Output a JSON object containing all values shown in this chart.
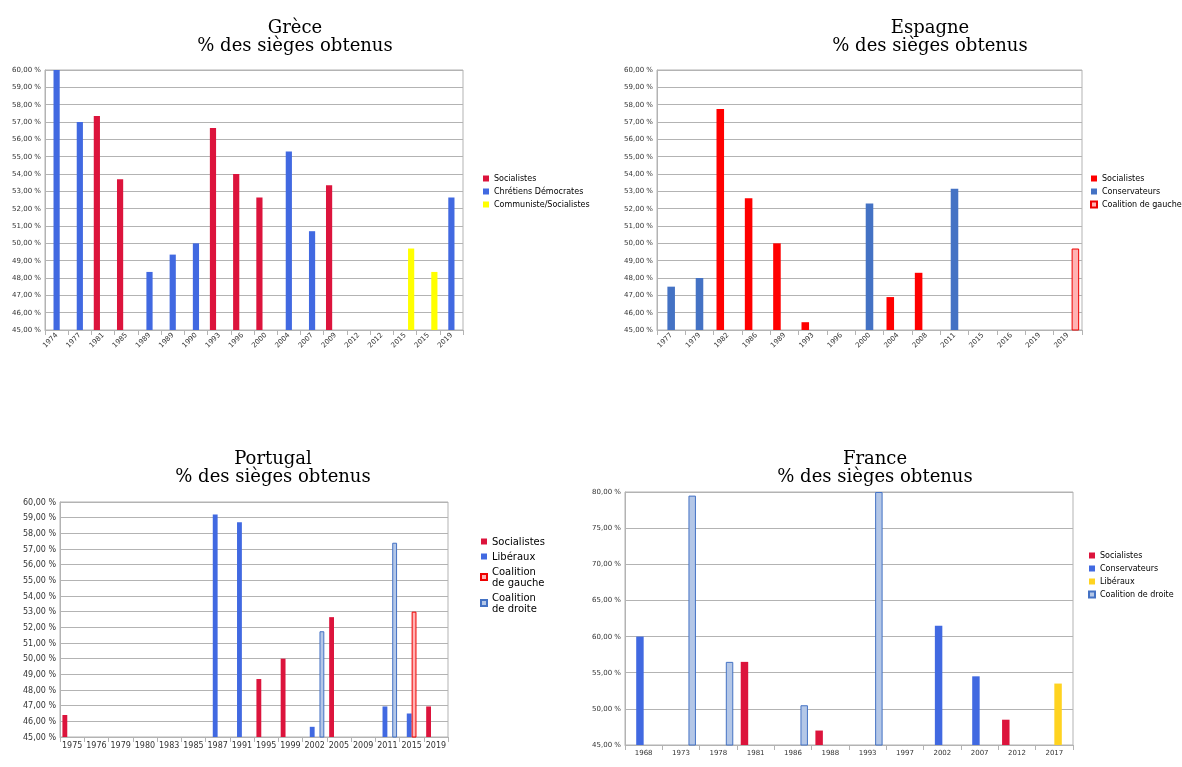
{
  "chart_data": [
    {
      "type": "bar",
      "title": "Grèce",
      "subtitle": "% des sièges obtenus",
      "categories": [
        "1974",
        "1977",
        "1981",
        "1985",
        "1989",
        "1989",
        "1990",
        "1993",
        "1996",
        "2000",
        "2004",
        "2007",
        "2009",
        "2012",
        "2012",
        "2015",
        "2015",
        "2019"
      ],
      "series": [
        {
          "name": "Socialistes",
          "color": "#dc143c",
          "values": [
            null,
            null,
            57.35,
            53.7,
            null,
            null,
            null,
            56.65,
            54.0,
            52.65,
            null,
            null,
            53.35,
            null,
            null,
            null,
            null,
            null
          ]
        },
        {
          "name": "Chrétiens Démocrates",
          "color": "#4169e1",
          "values": [
            60.0,
            57.0,
            null,
            null,
            48.35,
            49.35,
            50.0,
            null,
            null,
            null,
            55.3,
            50.7,
            null,
            null,
            null,
            null,
            null,
            52.65
          ]
        },
        {
          "name": "Communiste/Socialistes",
          "color": "#ffff00",
          "values": [
            null,
            null,
            null,
            null,
            null,
            null,
            null,
            null,
            null,
            null,
            null,
            null,
            null,
            null,
            null,
            49.7,
            48.35,
            null
          ]
        }
      ],
      "ylim": [
        45,
        60
      ],
      "yticks": [
        {
          "value": 45,
          "label": "45,00 %"
        },
        {
          "value": 46,
          "label": "46,00 %"
        },
        {
          "value": 47,
          "label": "47,00 %"
        },
        {
          "value": 48,
          "label": "48,00 %"
        },
        {
          "value": 49,
          "label": "49,00 %"
        },
        {
          "value": 50,
          "label": "50,00 %"
        },
        {
          "value": 51,
          "label": "51,00 %"
        },
        {
          "value": 52,
          "label": "52,00 %"
        },
        {
          "value": 53,
          "label": "53,00 %"
        },
        {
          "value": 54,
          "label": "54,00 %"
        },
        {
          "value": 55,
          "label": "55,00 %"
        },
        {
          "value": 56,
          "label": "56,00 %"
        },
        {
          "value": 57,
          "label": "57,00 %"
        },
        {
          "value": 58,
          "label": "58,00 %"
        },
        {
          "value": 59,
          "label": "59,00 %"
        },
        {
          "value": 60,
          "label": "60,00 %"
        }
      ],
      "grid": "y",
      "legend": "right"
    },
    {
      "type": "bar",
      "title": "Espagne",
      "subtitle": "% des sièges obtenus",
      "categories": [
        "1977",
        "1979",
        "1982",
        "1986",
        "1989",
        "1993",
        "1996",
        "2000",
        "2004",
        "2008",
        "2011",
        "2015",
        "2016",
        "2019",
        "2019"
      ],
      "series": [
        {
          "name": "Socialistes",
          "color": "#ff0000",
          "values": [
            null,
            null,
            57.75,
            52.6,
            50.0,
            45.45,
            null,
            null,
            46.9,
            48.3,
            null,
            null,
            null,
            null,
            null
          ]
        },
        {
          "name": "Conservateurs",
          "color": "#4472c4",
          "values": [
            47.5,
            48.0,
            null,
            null,
            null,
            null,
            null,
            52.3,
            null,
            null,
            53.15,
            null,
            null,
            null,
            null
          ]
        },
        {
          "name": "Coalition de gauche",
          "color": "#ffb3b3",
          "values": [
            null,
            null,
            null,
            null,
            null,
            null,
            null,
            null,
            null,
            null,
            null,
            null,
            null,
            null,
            49.7
          ]
        }
      ],
      "ylim": [
        45,
        60
      ],
      "yticks": [
        {
          "value": 45,
          "label": "45,00 %"
        },
        {
          "value": 46,
          "label": "46,00 %"
        },
        {
          "value": 47,
          "label": "47,00 %"
        },
        {
          "value": 48,
          "label": "48,00 %"
        },
        {
          "value": 49,
          "label": "49,00 %"
        },
        {
          "value": 50,
          "label": "50,00 %"
        },
        {
          "value": 51,
          "label": "51,00 %"
        },
        {
          "value": 52,
          "label": "52,00 %"
        },
        {
          "value": 53,
          "label": "53,00 %"
        },
        {
          "value": 54,
          "label": "54,00 %"
        },
        {
          "value": 55,
          "label": "55,00 %"
        },
        {
          "value": 56,
          "label": "56,00 %"
        },
        {
          "value": 57,
          "label": "57,00 %"
        },
        {
          "value": 58,
          "label": "58,00 %"
        },
        {
          "value": 59,
          "label": "59,00 %"
        },
        {
          "value": 60,
          "label": "60,00 %"
        }
      ],
      "grid": "y",
      "legend": "right"
    },
    {
      "type": "bar",
      "title": "Portugal",
      "subtitle": "% des sièges obtenus",
      "categories": [
        "1975",
        "1976",
        "1979",
        "1980",
        "1983",
        "1985",
        "1987",
        "1991",
        "1995",
        "1999",
        "2002",
        "2005",
        "2009",
        "2011",
        "2015",
        "2019"
      ],
      "series": [
        {
          "name": "Socialistes",
          "color": "#dc143c",
          "values": [
            46.4,
            null,
            null,
            null,
            null,
            null,
            null,
            null,
            48.7,
            50.0,
            null,
            52.65,
            null,
            null,
            null,
            46.95
          ]
        },
        {
          "name": "Libéraux",
          "color": "#4169e1",
          "values": [
            null,
            null,
            null,
            null,
            null,
            null,
            59.2,
            58.7,
            null,
            null,
            45.65,
            null,
            null,
            46.95,
            46.5,
            null
          ]
        },
        {
          "name": "Coalition de gauche",
          "color": "#ffb3b3",
          "values": [
            null,
            null,
            null,
            null,
            null,
            null,
            null,
            null,
            null,
            null,
            null,
            null,
            null,
            null,
            53.0,
            null
          ]
        },
        {
          "name": "Coalition de droite",
          "color": "#b4c7e7",
          "values": [
            null,
            null,
            null,
            null,
            null,
            null,
            null,
            null,
            null,
            null,
            51.75,
            null,
            null,
            57.4,
            null,
            null
          ]
        }
      ],
      "ylim": [
        45,
        60
      ],
      "yticks": [
        {
          "value": 45,
          "label": "45,00 %"
        },
        {
          "value": 46,
          "label": "46,00 %"
        },
        {
          "value": 47,
          "label": "47,00 %"
        },
        {
          "value": 48,
          "label": "48,00 %"
        },
        {
          "value": 49,
          "label": "49,00 %"
        },
        {
          "value": 50,
          "label": "50,00 %"
        },
        {
          "value": 51,
          "label": "51,00 %"
        },
        {
          "value": 52,
          "label": "52,00 %"
        },
        {
          "value": 53,
          "label": "53,00 %"
        },
        {
          "value": 54,
          "label": "54,00 %"
        },
        {
          "value": 55,
          "label": "55,00 %"
        },
        {
          "value": 56,
          "label": "56,00 %"
        },
        {
          "value": 57,
          "label": "57,00 %"
        },
        {
          "value": 58,
          "label": "58,00 %"
        },
        {
          "value": 59,
          "label": "59,00 %"
        },
        {
          "value": 60,
          "label": "60,00 %"
        }
      ],
      "grid": "y",
      "legend": "right"
    },
    {
      "type": "bar",
      "title": "France",
      "subtitle": "% des sièges obtenus",
      "categories": [
        "1968",
        "1973",
        "1978",
        "1981",
        "1986",
        "1988",
        "1993",
        "1997",
        "2002",
        "2007",
        "2012",
        "2017"
      ],
      "series": [
        {
          "name": "Socialistes",
          "color": "#dc143c",
          "values": [
            null,
            null,
            null,
            56.5,
            null,
            47.0,
            null,
            null,
            null,
            null,
            48.5,
            null
          ]
        },
        {
          "name": "Conservateurs",
          "color": "#4169e1",
          "values": [
            60.0,
            null,
            null,
            null,
            null,
            null,
            null,
            null,
            61.5,
            54.5,
            null,
            null
          ]
        },
        {
          "name": "Libéraux",
          "color": "#ffd320",
          "values": [
            null,
            null,
            null,
            null,
            null,
            null,
            null,
            null,
            null,
            null,
            null,
            53.5
          ]
        },
        {
          "name": "Coalition de droite",
          "color": "#b4c7e7",
          "values": [
            null,
            79.5,
            56.5,
            null,
            50.5,
            null,
            80.0,
            null,
            null,
            null,
            null,
            null
          ]
        }
      ],
      "ylim": [
        45,
        80
      ],
      "yticks": [
        {
          "value": 45,
          "label": "45,00 %"
        },
        {
          "value": 50,
          "label": "50,00 %"
        },
        {
          "value": 55,
          "label": "55,00 %"
        },
        {
          "value": 60,
          "label": "60,00 %"
        },
        {
          "value": 65,
          "label": "65,00 %"
        },
        {
          "value": 70,
          "label": "70,00 %"
        },
        {
          "value": 75,
          "label": "75,00 %"
        },
        {
          "value": 80,
          "label": "80,00 %"
        }
      ],
      "grid": "y",
      "legend": "right"
    }
  ]
}
